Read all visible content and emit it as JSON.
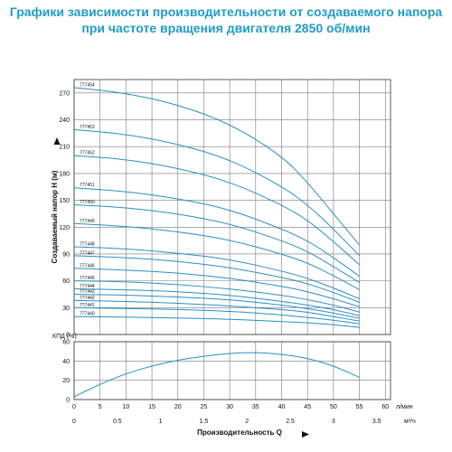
{
  "title_line1": "Графики зависимости производительности от создаваемого напора",
  "title_line2": "при частоте вращения двигателя 2850 об/мин",
  "chart_data": [
    {
      "type": "line",
      "ylabel": "Создаваемый напор Н (м)",
      "ylim": [
        0,
        285
      ],
      "yticks": [
        0,
        30,
        60,
        90,
        120,
        150,
        180,
        210,
        240,
        270
      ],
      "xlim": [
        0,
        61
      ],
      "grid": true,
      "curve_color": "#2a8ec5",
      "series": [
        {
          "name": "777454",
          "x": [
            0,
            10,
            20,
            30,
            40,
            45,
            50,
            55
          ],
          "y": [
            276,
            270,
            257,
            236,
            200,
            170,
            135,
            100
          ]
        },
        {
          "name": "777453",
          "x": [
            0,
            10,
            20,
            30,
            40,
            45,
            50,
            55
          ],
          "y": [
            229,
            224,
            213,
            196,
            166,
            145,
            118,
            88
          ]
        },
        {
          "name": "777452",
          "x": [
            0,
            10,
            20,
            30,
            40,
            45,
            50,
            55
          ],
          "y": [
            200,
            196,
            186,
            171,
            145,
            128,
            104,
            78
          ]
        },
        {
          "name": "777451",
          "x": [
            0,
            10,
            20,
            30,
            40,
            45,
            50,
            55
          ],
          "y": [
            164,
            160,
            152,
            140,
            118,
            105,
            86,
            65
          ]
        },
        {
          "name": "777450",
          "x": [
            0,
            10,
            20,
            30,
            40,
            45,
            50,
            55
          ],
          "y": [
            145,
            142,
            135,
            124,
            105,
            93,
            76,
            58
          ]
        },
        {
          "name": "777449",
          "x": [
            0,
            10,
            20,
            30,
            40,
            45,
            50,
            55
          ],
          "y": [
            124,
            121,
            115,
            106,
            90,
            80,
            66,
            50
          ]
        },
        {
          "name": "777448",
          "x": [
            0,
            10,
            20,
            30,
            40,
            45,
            50,
            55
          ],
          "y": [
            98,
            96,
            91,
            84,
            71,
            63,
            52,
            40
          ]
        },
        {
          "name": "777447",
          "x": [
            0,
            10,
            20,
            30,
            40,
            45,
            50,
            55
          ],
          "y": [
            88,
            86,
            82,
            75,
            64,
            57,
            47,
            36
          ]
        },
        {
          "name": "777446",
          "x": [
            0,
            10,
            20,
            30,
            40,
            45,
            50,
            55
          ],
          "y": [
            74,
            72,
            69,
            63,
            54,
            48,
            40,
            31
          ]
        },
        {
          "name": "777445",
          "x": [
            0,
            10,
            20,
            30,
            40,
            45,
            50,
            55
          ],
          "y": [
            60,
            59,
            56,
            51,
            44,
            39,
            33,
            25
          ]
        },
        {
          "name": "777444",
          "x": [
            0,
            10,
            20,
            30,
            40,
            45,
            50,
            55
          ],
          "y": [
            51,
            50,
            48,
            44,
            37,
            33,
            28,
            21
          ]
        },
        {
          "name": "777443",
          "x": [
            0,
            10,
            20,
            30,
            40,
            45,
            50,
            55
          ],
          "y": [
            45,
            44,
            42,
            39,
            33,
            29,
            24,
            18
          ]
        },
        {
          "name": "777442",
          "x": [
            0,
            10,
            20,
            30,
            40,
            45,
            50,
            55
          ],
          "y": [
            38,
            37,
            35,
            32,
            28,
            25,
            20,
            15
          ]
        },
        {
          "name": "777441",
          "x": [
            0,
            10,
            20,
            30,
            40,
            45,
            50,
            55
          ],
          "y": [
            30,
            29,
            28,
            26,
            22,
            19,
            16,
            12
          ]
        },
        {
          "name": "777440",
          "x": [
            0,
            10,
            20,
            30,
            40,
            45,
            50,
            55
          ],
          "y": [
            20,
            19.5,
            18.5,
            17,
            14.5,
            13,
            11,
            8
          ]
        }
      ]
    },
    {
      "type": "line",
      "ylabel": "КПД (%)",
      "ylim": [
        0,
        60
      ],
      "yticks": [
        0,
        20,
        40,
        60
      ],
      "xticks_lpm": [
        0,
        5,
        10,
        15,
        20,
        25,
        30,
        35,
        40,
        45,
        50,
        55,
        60
      ],
      "x_unit_lpm": "л/мин",
      "xticks_m3h": [
        "0",
        "0.5",
        "1",
        "1.5",
        "2",
        "2.5",
        "3",
        "3.5"
      ],
      "x_unit_m3h": "м³/ч",
      "xlabel": "Производительность Q",
      "xlim": [
        0,
        61
      ],
      "grid": true,
      "series": [
        {
          "x": [
            0,
            5,
            10,
            15,
            20,
            25,
            30,
            35,
            40,
            45,
            50,
            55
          ],
          "y": [
            3,
            16,
            27,
            35,
            41,
            45,
            48,
            49,
            47,
            43,
            35,
            23
          ]
        }
      ]
    }
  ]
}
